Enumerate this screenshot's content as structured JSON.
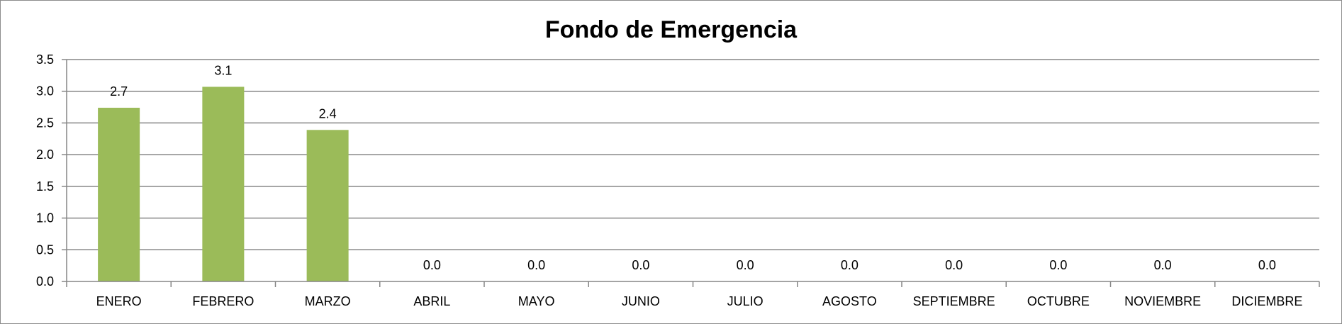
{
  "chart_data": {
    "type": "bar",
    "title": "Fondo de Emergencia",
    "xlabel": "",
    "ylabel": "",
    "categories": [
      "ENERO",
      "FEBRERO",
      "MARZO",
      "ABRIL",
      "MAYO",
      "JUNIO",
      "JULIO",
      "AGOSTO",
      "SEPTIEMBRE",
      "OCTUBRE",
      "NOVIEMBRE",
      "DICIEMBRE"
    ],
    "values": [
      2.74,
      3.07,
      2.39,
      0,
      0,
      0,
      0,
      0,
      0,
      0,
      0,
      0
    ],
    "data_labels": [
      "2.7",
      "3.1",
      "2.4",
      "0.0",
      "0.0",
      "0.0",
      "0.0",
      "0.0",
      "0.0",
      "0.0",
      "0.0",
      "0.0"
    ],
    "ylim": [
      0,
      3.5
    ],
    "yticks": [
      "0.0",
      "0.5",
      "1.0",
      "1.5",
      "2.0",
      "2.5",
      "3.0",
      "3.5"
    ],
    "grid": true,
    "legend": "none",
    "colors": {
      "bar": "#9bbb59",
      "grid": "#868686",
      "axis": "#868686"
    }
  }
}
